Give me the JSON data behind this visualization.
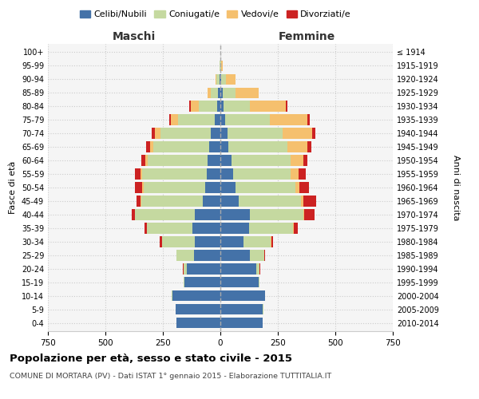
{
  "age_groups": [
    "0-4",
    "5-9",
    "10-14",
    "15-19",
    "20-24",
    "25-29",
    "30-34",
    "35-39",
    "40-44",
    "45-49",
    "50-54",
    "55-59",
    "60-64",
    "65-69",
    "70-74",
    "75-79",
    "80-84",
    "85-89",
    "90-94",
    "95-99",
    "100+"
  ],
  "birth_years": [
    "2010-2014",
    "2005-2009",
    "2000-2004",
    "1995-1999",
    "1990-1994",
    "1985-1989",
    "1980-1984",
    "1975-1979",
    "1970-1974",
    "1965-1969",
    "1960-1964",
    "1955-1959",
    "1950-1954",
    "1945-1949",
    "1940-1944",
    "1935-1939",
    "1930-1934",
    "1925-1929",
    "1920-1924",
    "1915-1919",
    "≤ 1914"
  ],
  "maschi": {
    "celibi": [
      190,
      195,
      210,
      155,
      145,
      115,
      110,
      120,
      110,
      75,
      65,
      60,
      55,
      50,
      40,
      25,
      15,
      10,
      5,
      1,
      0
    ],
    "coniugati": [
      0,
      1,
      2,
      3,
      15,
      75,
      145,
      200,
      260,
      270,
      270,
      280,
      260,
      240,
      220,
      160,
      80,
      30,
      12,
      2,
      0
    ],
    "vedovi": [
      0,
      0,
      0,
      0,
      0,
      0,
      0,
      1,
      2,
      3,
      5,
      8,
      10,
      15,
      25,
      30,
      35,
      15,
      5,
      1,
      0
    ],
    "divorziati": [
      0,
      0,
      0,
      0,
      2,
      2,
      8,
      8,
      12,
      18,
      30,
      25,
      18,
      18,
      15,
      8,
      5,
      0,
      0,
      0,
      0
    ]
  },
  "femmine": {
    "nubili": [
      185,
      185,
      195,
      165,
      155,
      130,
      100,
      125,
      130,
      80,
      65,
      55,
      50,
      35,
      30,
      20,
      15,
      10,
      5,
      1,
      0
    ],
    "coniugate": [
      0,
      1,
      1,
      4,
      15,
      60,
      120,
      190,
      230,
      270,
      260,
      250,
      255,
      255,
      240,
      195,
      115,
      55,
      20,
      3,
      0
    ],
    "vedove": [
      0,
      0,
      0,
      0,
      0,
      1,
      2,
      3,
      5,
      12,
      20,
      35,
      55,
      90,
      130,
      165,
      155,
      100,
      40,
      5,
      0
    ],
    "divorziate": [
      0,
      0,
      0,
      0,
      2,
      5,
      8,
      20,
      45,
      55,
      40,
      30,
      18,
      15,
      12,
      10,
      5,
      0,
      0,
      0,
      0
    ]
  },
  "colors": {
    "celibi_nubili": "#4472a8",
    "coniugati": "#c5d9a0",
    "vedovi": "#f5c06e",
    "divorziati": "#cc2222"
  },
  "xlim": 750,
  "title": "Popolazione per età, sesso e stato civile - 2015",
  "subtitle": "COMUNE DI MORTARA (PV) - Dati ISTAT 1° gennaio 2015 - Elaborazione TUTTITALIA.IT",
  "ylabel_left": "Fasce di età",
  "ylabel_right": "Anni di nascita",
  "xlabel_left": "Maschi",
  "xlabel_right": "Femmine"
}
